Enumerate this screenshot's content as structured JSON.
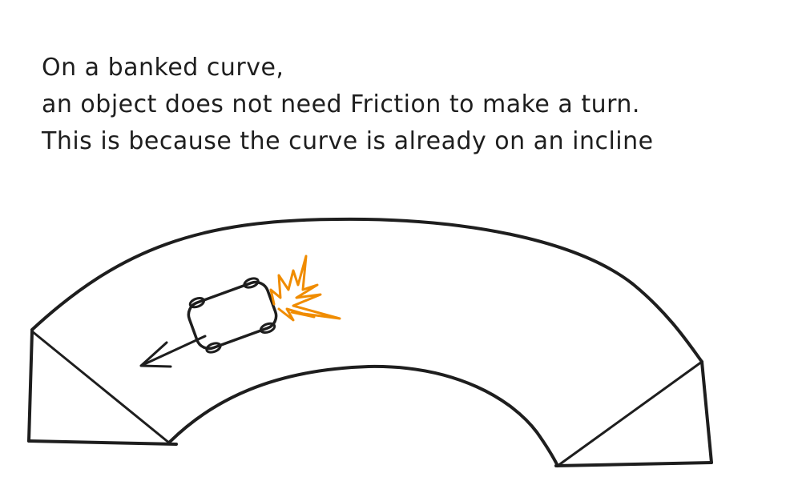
{
  "caption": {
    "lines": [
      "On a banked curve,",
      "an object does not need Friction to make a turn.",
      "This is because the curve is already on an incline"
    ]
  },
  "colors": {
    "ink": "#1e1e1e",
    "accent": "#f08c00",
    "background": "#ffffff"
  },
  "diagram": {
    "subject": "banked-curve-track",
    "elements": [
      "curved-track",
      "car",
      "motion-arrow",
      "impact-burst"
    ]
  }
}
